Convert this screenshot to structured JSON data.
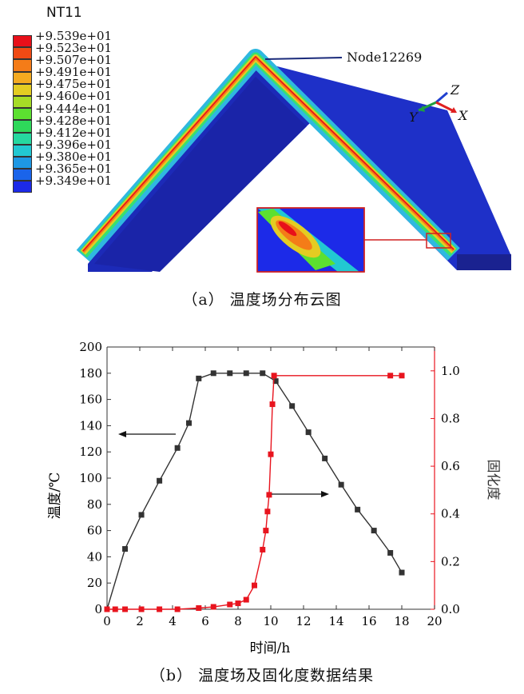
{
  "panel_a": {
    "caption": "（a） 温度场分布云图",
    "legend_title": "NT11",
    "legend_values": [
      "+9.539e+01",
      "+9.523e+01",
      "+9.507e+01",
      "+9.491e+01",
      "+9.475e+01",
      "+9.460e+01",
      "+9.444e+01",
      "+9.428e+01",
      "+9.412e+01",
      "+9.396e+01",
      "+9.380e+01",
      "+9.365e+01",
      "+9.349e+01"
    ],
    "legend_colors": [
      "#e8101a",
      "#f04a14",
      "#f47c18",
      "#f4aa20",
      "#e4cc22",
      "#a6dc26",
      "#5ce030",
      "#2ed85a",
      "#26d8a0",
      "#22c8d2",
      "#1e98e4",
      "#1a64ea",
      "#1c2ae8"
    ],
    "node_label": "Node12269",
    "axis_labels": {
      "x": "X",
      "y": "Y",
      "z": "Z"
    }
  },
  "panel_b": {
    "caption": "（b） 温度场及固化度数据结果"
  },
  "chart_data": {
    "type": "line",
    "xlabel": "时间/h",
    "ylabel": "温度/℃",
    "y2label": "固化度",
    "xlim": [
      0,
      20
    ],
    "ylim": [
      0,
      200
    ],
    "y2lim": [
      0,
      1.1
    ],
    "x_ticks": [
      "0",
      "2",
      "4",
      "6",
      "8",
      "10",
      "12",
      "14",
      "16",
      "18",
      "20"
    ],
    "y_ticks": [
      "0",
      "20",
      "40",
      "60",
      "80",
      "100",
      "120",
      "140",
      "160",
      "180",
      "200"
    ],
    "y2_ticks": [
      "0.0",
      "0.2",
      "0.4",
      "0.6",
      "0.8",
      "1.0"
    ],
    "series": [
      {
        "axis": "left",
        "color": "#333333",
        "x": [
          0,
          1.1,
          2.1,
          3.2,
          4.3,
          5.0,
          5.6,
          6.5,
          7.5,
          8.5,
          9.5,
          10.3,
          11.3,
          12.3,
          13.3,
          14.3,
          15.3,
          16.3,
          17.3,
          18.0
        ],
        "y": [
          0,
          46,
          72,
          98,
          123,
          142,
          176,
          180,
          180,
          180,
          180,
          174,
          155,
          135,
          115,
          95,
          76,
          60,
          43,
          28
        ]
      },
      {
        "axis": "right",
        "color": "#e8141e",
        "x": [
          0,
          0.5,
          1.1,
          2.1,
          3.2,
          4.3,
          5.6,
          6.5,
          7.5,
          8.0,
          8.5,
          9.0,
          9.5,
          9.7,
          9.8,
          9.9,
          10.0,
          10.1,
          10.2,
          17.3,
          18.0
        ],
        "y": [
          0,
          0,
          0,
          0,
          0,
          0,
          0.005,
          0.01,
          0.02,
          0.025,
          0.04,
          0.1,
          0.25,
          0.33,
          0.41,
          0.48,
          0.65,
          0.86,
          0.98,
          0.98,
          0.98
        ]
      }
    ],
    "annotations": [
      "left-arrow to temperature axis",
      "right-arrow to cure axis"
    ]
  }
}
